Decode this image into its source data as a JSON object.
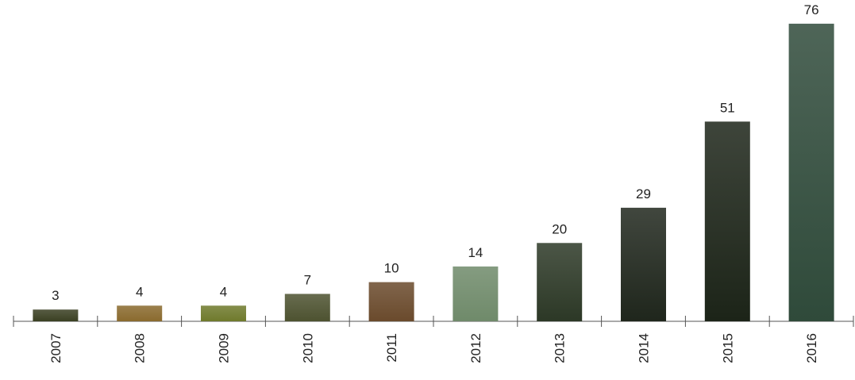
{
  "chart_data": {
    "type": "bar",
    "categories": [
      "2007",
      "2008",
      "2009",
      "2010",
      "2011",
      "2012",
      "2013",
      "2014",
      "2015",
      "2016"
    ],
    "values": [
      3,
      4,
      4,
      7,
      10,
      14,
      20,
      29,
      51,
      76
    ],
    "colors": [
      "#3a3f22",
      "#8a6a2e",
      "#6f7a2c",
      "#4d5230",
      "#6a4a2c",
      "#6f8a6a",
      "#2c3826",
      "#1f261c",
      "#1c2418",
      "#2f4a3a"
    ],
    "ylim": [
      0,
      78
    ]
  }
}
